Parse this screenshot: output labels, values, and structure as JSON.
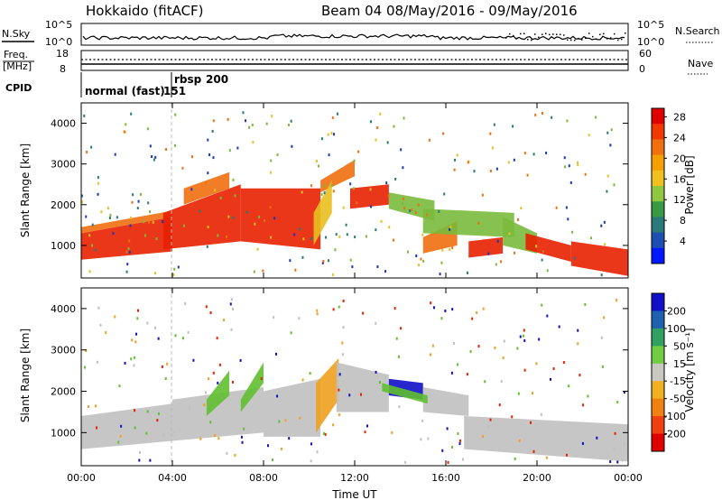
{
  "header": {
    "title": "Hokkaido (fitACF)",
    "subtitle": "Beam 04 08/May/2016 - 09/May/2016"
  },
  "status_panel": {
    "nsky_label": "N.Sky",
    "nsky_ticks": [
      "10^5",
      "10^0"
    ],
    "nsearch_label": "N.Search",
    "nsearch_ticks": [
      "10^5",
      "10^0"
    ],
    "freq_label_line1": "Freq.",
    "freq_label_line2": "[MHz]",
    "freq_ticks": [
      "18",
      "8"
    ],
    "nave_label": "Nave",
    "nave_ticks": [
      "60",
      "0"
    ],
    "cpid_label": "CPID",
    "cpid_mode1": "normal (fast)",
    "cpid_value1": "151",
    "cpid_mode2": "rbsp",
    "cpid_value2": "200"
  },
  "chart_data": [
    {
      "type": "heatmap",
      "title": "Power",
      "ylabel": "Slant Range [km]",
      "xlabel": "",
      "x_ticks": [
        "00:00",
        "04:00",
        "08:00",
        "12:00",
        "16:00",
        "20:00",
        "00:00"
      ],
      "x_range_hours": [
        0,
        24
      ],
      "y_ticks": [
        1000,
        2000,
        3000,
        4000
      ],
      "ylim": [
        200,
        4500
      ],
      "colorbar": {
        "label": "Power [dB]",
        "ticks": [
          4,
          8,
          12,
          16,
          20,
          24,
          28
        ],
        "colors": [
          "#0018ff",
          "#1d4fb2",
          "#2a7a7a",
          "#3a9a44",
          "#8fc840",
          "#f0c020",
          "#f5a000",
          "#f07010",
          "#f03800",
          "#e00000"
        ]
      }
    },
    {
      "type": "heatmap",
      "title": "Velocity",
      "ylabel": "Slant Range [km]",
      "xlabel": "Time UT",
      "x_ticks": [
        "00:00",
        "04:00",
        "08:00",
        "12:00",
        "16:00",
        "20:00",
        "00:00"
      ],
      "x_range_hours": [
        0,
        24
      ],
      "y_ticks": [
        1000,
        2000,
        3000,
        4000
      ],
      "ylim": [
        200,
        4500
      ],
      "colorbar": {
        "label": "Velocity [m s⁻¹]",
        "ticks": [
          200,
          100,
          50,
          15,
          -15,
          -50,
          -100,
          -200
        ],
        "colors": [
          "#1010c8",
          "#2060b0",
          "#30a060",
          "#70cc40",
          "#c8c8c0",
          "#f0b020",
          "#f08010",
          "#f04010",
          "#e00000"
        ],
        "ground_scatter_color": "#c0c0c0"
      }
    }
  ],
  "colors": {
    "power_red": "#e82000",
    "power_orange": "#f07010",
    "power_yellow": "#e8c020",
    "power_green": "#7aba3c",
    "power_teal": "#2a7a7a",
    "power_blue": "#1838c0",
    "ground_scatter": "#c0c0c0",
    "vel_green": "#60c030",
    "vel_orange": "#f0a020",
    "vel_blue": "#1010c8"
  }
}
